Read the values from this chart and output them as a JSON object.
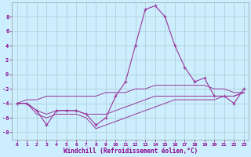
{
  "xlabel": "Windchill (Refroidissement éolien,°C)",
  "hours": [
    0,
    1,
    2,
    3,
    4,
    5,
    6,
    7,
    8,
    9,
    10,
    11,
    12,
    13,
    14,
    15,
    16,
    17,
    18,
    19,
    20,
    21,
    22,
    23
  ],
  "windchill": [
    -4,
    -4,
    -5,
    -7,
    -5,
    -5,
    -5,
    -5.5,
    -7,
    -6,
    -3,
    -1,
    4,
    9,
    9.5,
    8,
    4,
    1,
    -1,
    -0.5,
    -3,
    -3,
    -4,
    -2
  ],
  "line1": [
    -4,
    -3.5,
    -3.5,
    -3,
    -3,
    -3,
    -3,
    -3,
    -3,
    -2.5,
    -2.5,
    -2.5,
    -2,
    -2,
    -1.5,
    -1.5,
    -1.5,
    -1.5,
    -1.5,
    -1.5,
    -2,
    -2,
    -2.5,
    -2.5
  ],
  "line2": [
    -4,
    -4,
    -5,
    -5.5,
    -5,
    -5,
    -5,
    -5.5,
    -5.5,
    -5.5,
    -5,
    -4.5,
    -4,
    -3.5,
    -3,
    -3,
    -3,
    -3,
    -3,
    -3,
    -3,
    -3,
    -3,
    -2.5
  ],
  "line3": [
    -4,
    -4,
    -5.5,
    -6,
    -5.5,
    -5.5,
    -5.5,
    -6,
    -7.5,
    -7,
    -6.5,
    -6,
    -5.5,
    -5,
    -4.5,
    -4,
    -3.5,
    -3.5,
    -3.5,
    -3.5,
    -3.5,
    -3,
    -3,
    -2.5
  ],
  "line_color": "#993399",
  "bg_color": "#cceeff",
  "grid_color": "#aacccc",
  "ylim": [
    -9,
    10
  ],
  "yticks": [
    -8,
    -6,
    -4,
    -2,
    0,
    2,
    4,
    6,
    8
  ],
  "xticks": [
    0,
    1,
    2,
    3,
    4,
    5,
    6,
    7,
    8,
    9,
    10,
    11,
    12,
    13,
    14,
    15,
    16,
    17,
    18,
    19,
    20,
    21,
    22,
    23
  ]
}
